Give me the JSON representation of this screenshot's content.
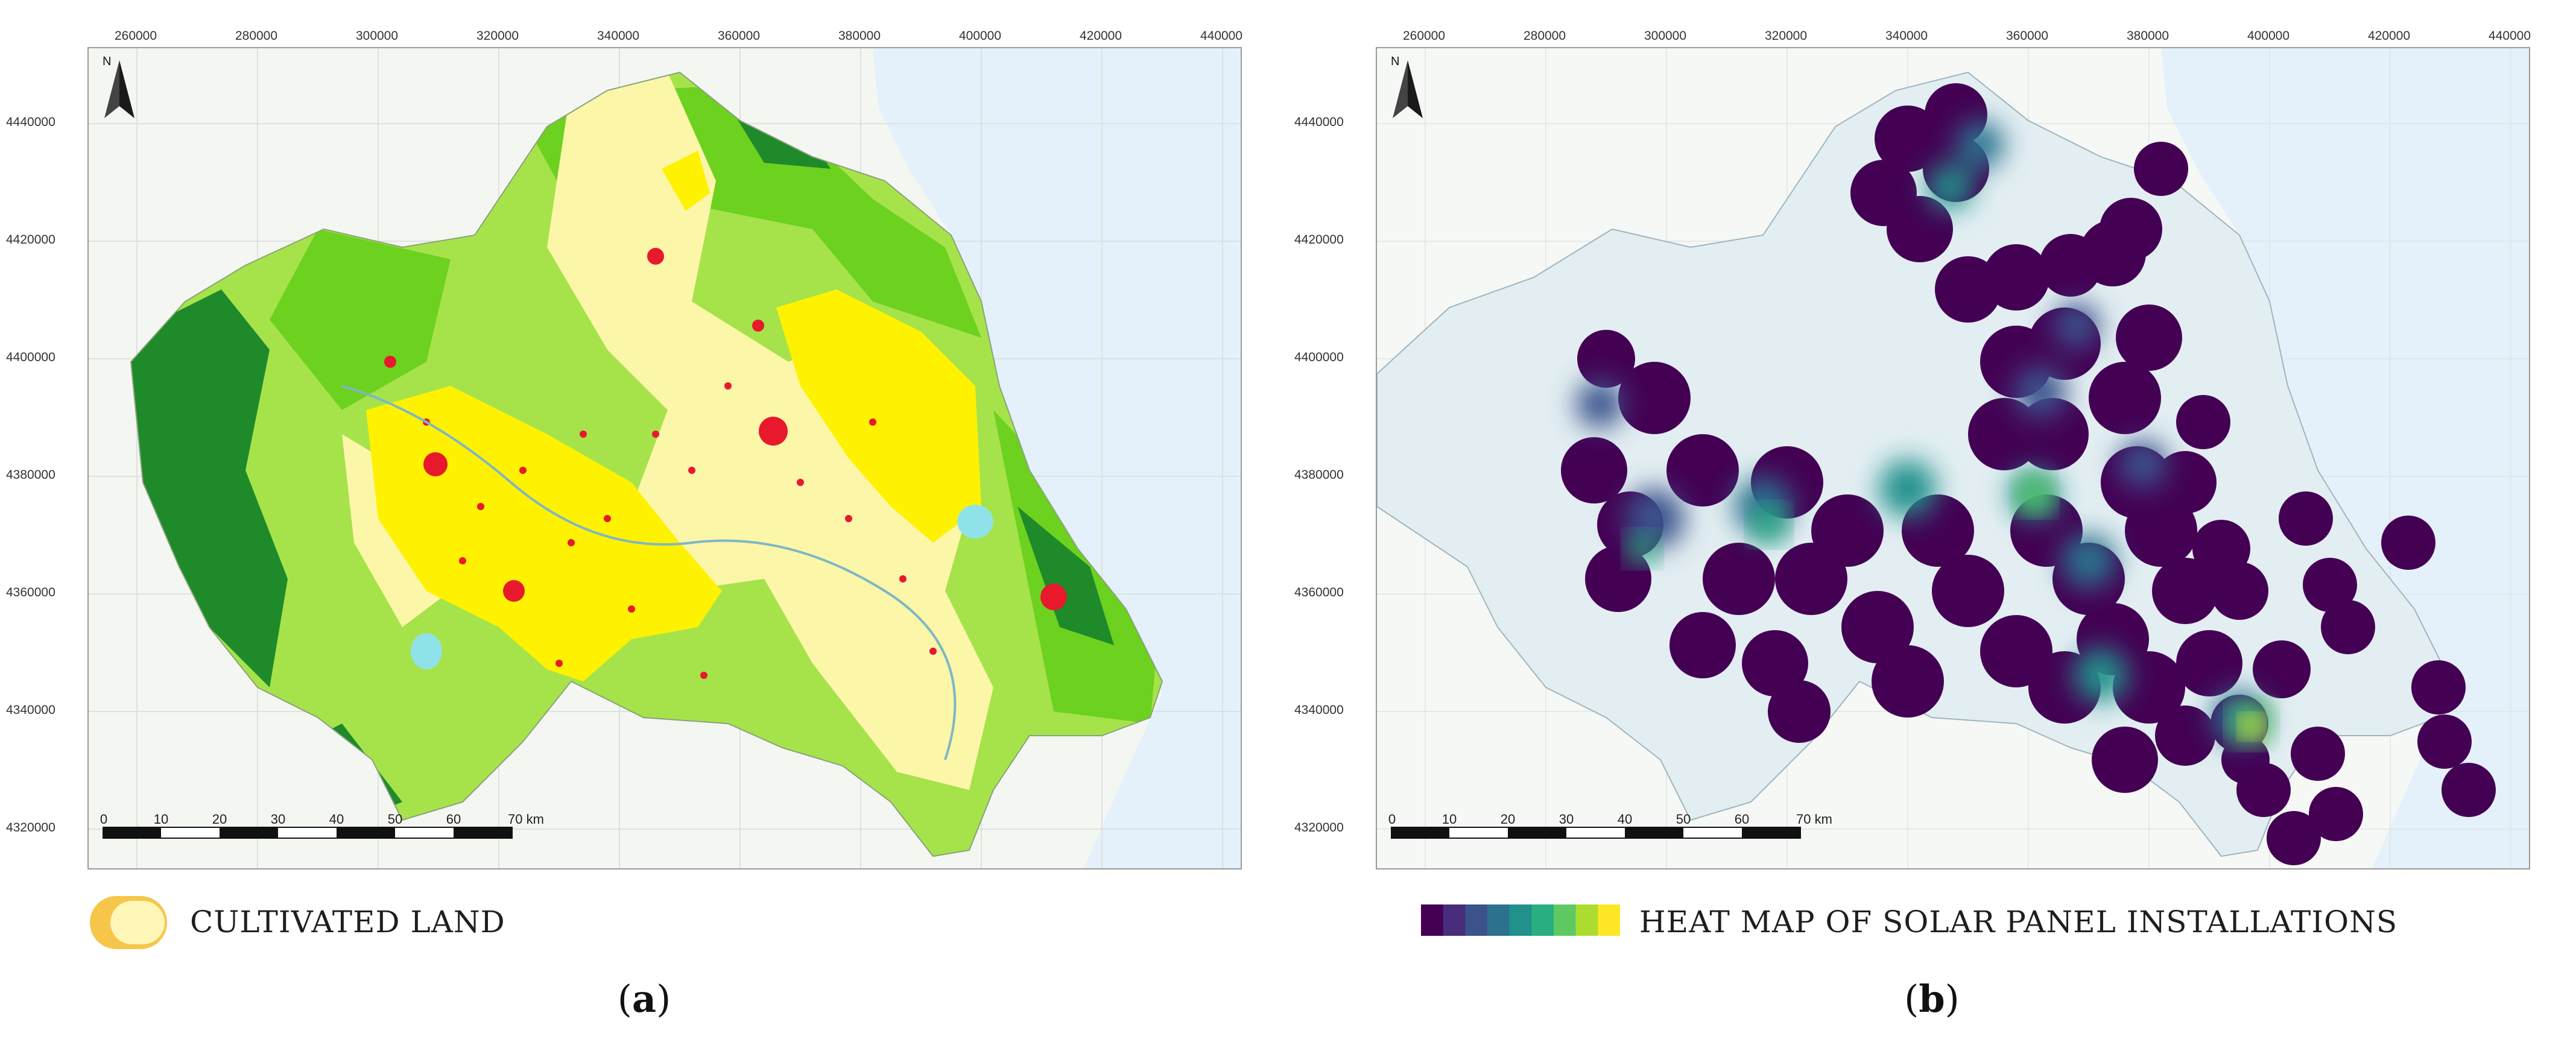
{
  "x_axis_ticks": [
    "260000",
    "280000",
    "300000",
    "320000",
    "340000",
    "360000",
    "380000",
    "400000",
    "420000",
    "440000"
  ],
  "y_axis_ticks": [
    "4440000",
    "4420000",
    "4400000",
    "4380000",
    "4360000",
    "4340000",
    "4320000"
  ],
  "scale_bar": {
    "labels": [
      "0",
      "10",
      "20",
      "30",
      "40",
      "50",
      "60",
      "70 km"
    ]
  },
  "north_arrow_label": "N",
  "panel_a": {
    "legend_label": "CULTIVATED LAND",
    "caption_letter": "a",
    "legend_colors": [
      "#f6c64a",
      "#fff7b8"
    ],
    "land_colors": {
      "cultivated_yellow": "#fff200",
      "cultivated_pale": "#fbf6a8",
      "grassland": "#a6e34a",
      "bright_green": "#6dd11f",
      "forest": "#1e8a2a",
      "urban": "#e8192c",
      "water": "#8fe3e8",
      "sea": "#e4f1fb"
    }
  },
  "panel_b": {
    "legend_label": "HEAT MAP OF SOLAR PANEL INSTALLATIONS",
    "caption_letter": "b",
    "colormap": [
      "#440154",
      "#472d7b",
      "#3b528b",
      "#2c728e",
      "#21918c",
      "#28ae80",
      "#5ec962",
      "#addc30",
      "#fde725"
    ]
  }
}
